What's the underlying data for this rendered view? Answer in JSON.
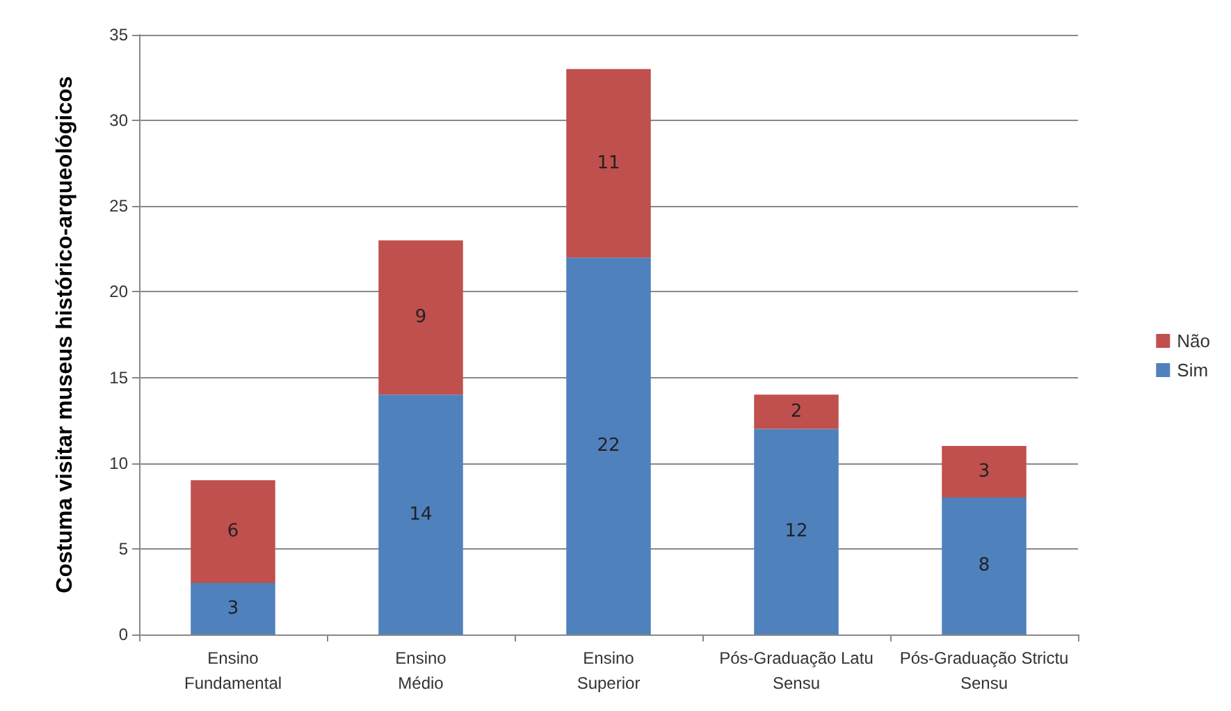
{
  "chart_data": {
    "type": "bar",
    "stacked": true,
    "ylabel": "Costuma visitar museus histórico-arqueológicos",
    "categories": [
      "Ensino Fundamental",
      "Ensino Médio",
      "Ensino Superior",
      "Pós-Graduação Latu Sensu",
      "Pós-Graduação Strictu Sensu"
    ],
    "series": [
      {
        "name": "Sim",
        "color": "#4f81bd",
        "values": [
          3,
          14,
          22,
          12,
          8
        ]
      },
      {
        "name": "Não",
        "color": "#c0504d",
        "values": [
          6,
          9,
          11,
          2,
          3
        ]
      }
    ],
    "ylim": [
      0,
      35
    ],
    "yticks": [
      0,
      5,
      10,
      15,
      20,
      25,
      30,
      35
    ],
    "grid": "y",
    "legend": "right",
    "data_labels": true
  }
}
